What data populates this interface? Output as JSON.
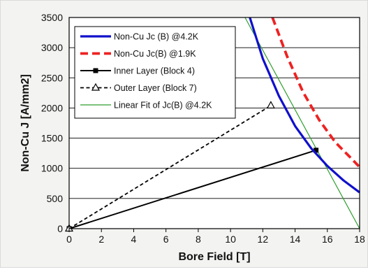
{
  "chart_data": {
    "type": "line",
    "xlabel": "Bore Field [T]",
    "ylabel": "Non-Cu J [A/mm2]",
    "xlim": [
      0,
      18
    ],
    "ylim": [
      0,
      3500
    ],
    "xticks": [
      "0",
      "2",
      "4",
      "6",
      "8",
      "10",
      "12",
      "14",
      "16",
      "18"
    ],
    "yticks": [
      "0",
      "500",
      "1000",
      "1500",
      "2000",
      "2500",
      "3000",
      "3500"
    ],
    "grid": "horizontal",
    "legend_position": "top-left",
    "series": [
      {
        "name": "Non-Cu Jc (B) @4.2K",
        "color": "#1010cc",
        "style": "solid-thick",
        "marker": "none",
        "x": [
          11.2,
          12.0,
          13.0,
          14.0,
          15.0,
          16.0,
          17.0,
          18.0
        ],
        "y": [
          3500,
          2820,
          2200,
          1700,
          1330,
          1040,
          800,
          600
        ]
      },
      {
        "name": "Non-Cu Jc(B) @1.9K",
        "color": "#ee2222",
        "style": "dashed-thick",
        "marker": "none",
        "x": [
          12.6,
          13.5,
          14.5,
          15.5,
          16.5,
          17.5,
          18.0
        ],
        "y": [
          3500,
          2860,
          2260,
          1800,
          1430,
          1160,
          1020
        ]
      },
      {
        "name": "Inner Layer (Block 4)",
        "color": "#000000",
        "style": "solid",
        "marker": "square",
        "x": [
          0,
          15.3
        ],
        "y": [
          0,
          1300
        ]
      },
      {
        "name": "Outer Layer (Block 7)",
        "color": "#000000",
        "style": "dashed",
        "marker": "triangle",
        "x": [
          0,
          12.5
        ],
        "y": [
          0,
          2040
        ]
      },
      {
        "name": "Linear Fit of Jc(B) @4.2K",
        "color": "#2e9e2e",
        "style": "solid-thin",
        "marker": "none",
        "x": [
          10.9,
          18.0
        ],
        "y": [
          3500,
          0
        ]
      }
    ]
  }
}
